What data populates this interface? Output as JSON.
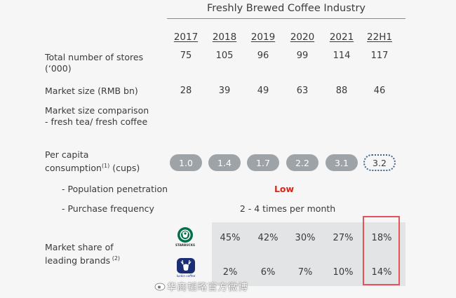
{
  "header": {
    "title": "Freshly Brewed Coffee Industry"
  },
  "years": [
    "2017",
    "2018",
    "2019",
    "2020",
    "2021",
    "22H1"
  ],
  "rows": {
    "stores": {
      "label_1": "Total number of stores",
      "label_2": "(‘000)",
      "values": [
        "75",
        "105",
        "96",
        "99",
        "114",
        "117"
      ]
    },
    "market_size": {
      "label": "Market size (RMB bn)",
      "values": [
        "28",
        "39",
        "49",
        "63",
        "88",
        "46"
      ]
    },
    "comparison": {
      "label_1": "Market size comparison",
      "label_2": "- fresh tea/ fresh coffee"
    },
    "per_capita": {
      "label_1": "Per capita",
      "label_2": "consumption",
      "footnote": "(1)",
      "label_3": " (cups)",
      "values": [
        "1.0",
        "1.4",
        "1.7",
        "2.2",
        "3.1",
        "3.2"
      ]
    },
    "penetration": {
      "label": "- Population penetration",
      "value": "Low"
    },
    "frequency": {
      "label": "- Purchase frequency",
      "value": "2 - 4 times per month"
    },
    "brands": {
      "label_1": "Market share of",
      "label_2": "leading brands",
      "footnote": " (2)",
      "starbucks": {
        "icon": "starbucks-logo-icon",
        "logo_text": "STARBUCKS",
        "values": [
          "45%",
          "42%",
          "30%",
          "27%",
          "18%"
        ]
      },
      "luckin": {
        "icon": "luckin-logo-icon",
        "logo_text": "luckin coffee",
        "values": [
          "2%",
          "6%",
          "7%",
          "10%",
          "14%"
        ]
      }
    }
  },
  "watermark": {
    "text": "华商韬略官方微博"
  },
  "colors": {
    "pill": "#9ea3a8",
    "low": "#d9261c",
    "highlight_border": "#e4525b",
    "dashed_border": "#3f6585",
    "share_box": "#e2e4e6"
  }
}
